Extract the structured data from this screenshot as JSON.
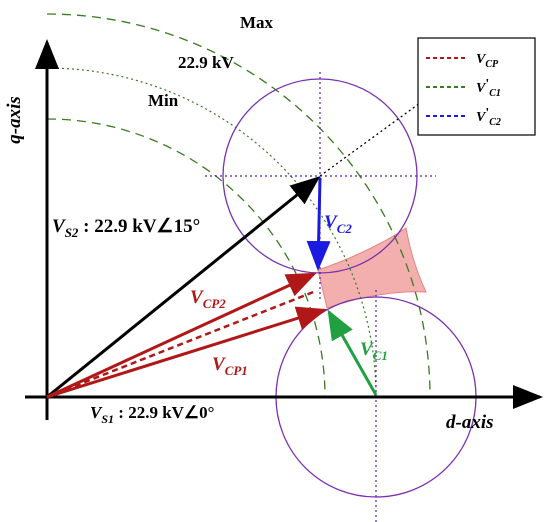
{
  "axes": {
    "q": "q-axis",
    "d": "d-axis"
  },
  "arc_labels": {
    "max": "Max",
    "nominal": "22.9 kV",
    "min": "Min"
  },
  "legend": [
    {
      "main": "V",
      "prime": "",
      "sub": "CP"
    },
    {
      "main": "V",
      "prime": "'",
      "sub": "C1"
    },
    {
      "main": "V",
      "prime": "'",
      "sub": "C2"
    }
  ],
  "vectors": {
    "vs2": {
      "main": "V",
      "sub": "S2",
      "rest": " : 22.9 kV∠15°"
    },
    "vs1": {
      "main": "V",
      "sub": "S1",
      "rest": " : 22.9 kV∠0°"
    },
    "vcp2": {
      "main": "V",
      "sub": "CP2"
    },
    "vcp1": {
      "main": "V",
      "sub": "CP1"
    },
    "vc2": {
      "main": "V",
      "sub": "C2"
    },
    "vc1": {
      "main": "V",
      "sub": "C1"
    }
  }
}
